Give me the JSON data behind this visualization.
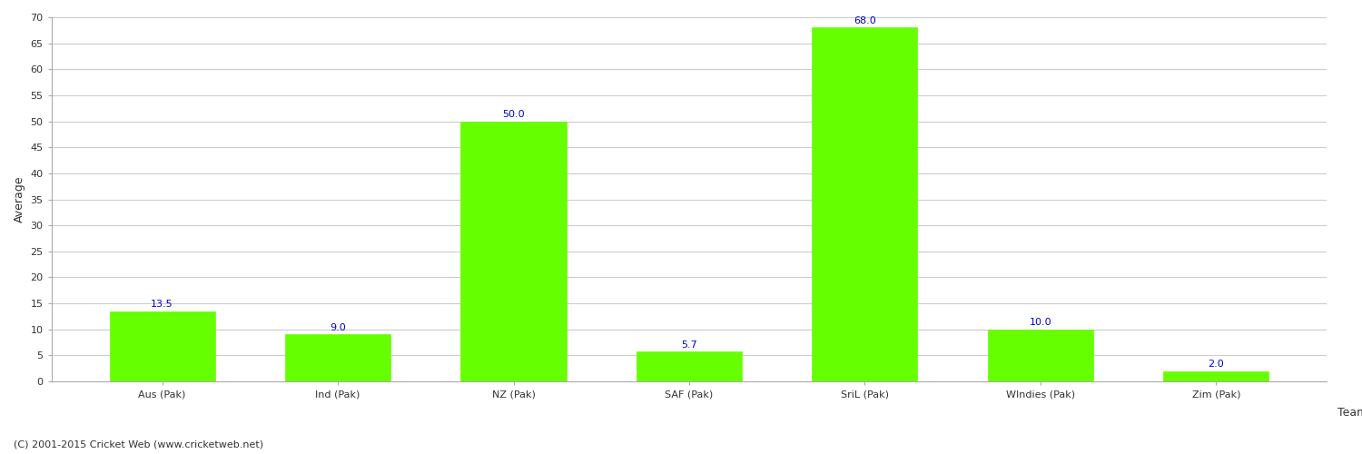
{
  "categories": [
    "Aus (Pak)",
    "Ind (Pak)",
    "NZ (Pak)",
    "SAF (Pak)",
    "SriL (Pak)",
    "WIndies (Pak)",
    "Zim (Pak)"
  ],
  "values": [
    13.5,
    9.0,
    50.0,
    5.7,
    68.0,
    10.0,
    2.0
  ],
  "bar_color": "#66ff00",
  "bar_edge_color": "#66ff00",
  "label_color": "#0000cc",
  "ylabel": "Average",
  "xlabel": "Team",
  "ylim": [
    0,
    70
  ],
  "yticks": [
    0,
    5,
    10,
    15,
    20,
    25,
    30,
    35,
    40,
    45,
    50,
    55,
    60,
    65,
    70
  ],
  "background_color": "#ffffff",
  "grid_color": "#cccccc",
  "label_fontsize": 8,
  "axis_label_fontsize": 9,
  "tick_fontsize": 8,
  "footer_text": "(C) 2001-2015 Cricket Web (www.cricketweb.net)",
  "footer_fontsize": 8,
  "footer_color": "#333333",
  "bar_width": 0.6
}
